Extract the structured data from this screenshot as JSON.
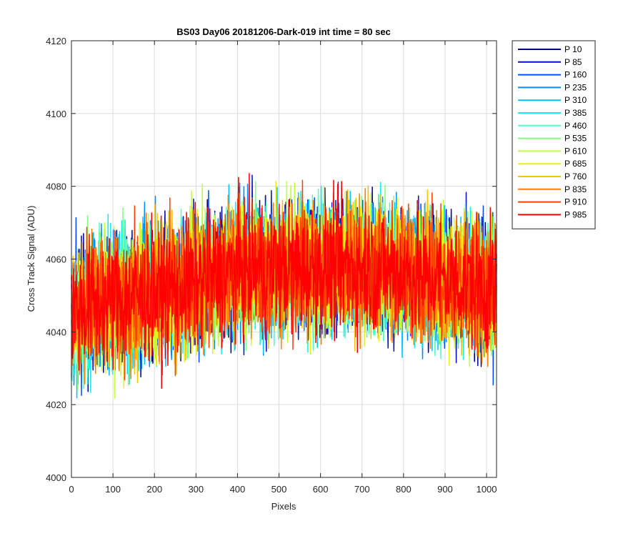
{
  "chart_data": {
    "type": "line",
    "title": "BS03 Day06 20181206-Dark-019 int time = 80 sec",
    "xlabel": "Pixels",
    "ylabel": "Cross Track Signal (ADU)",
    "xlim": [
      0,
      1024
    ],
    "ylim": [
      4000,
      4120
    ],
    "x_ticks": [
      0,
      100,
      200,
      300,
      400,
      500,
      600,
      700,
      800,
      900,
      1000
    ],
    "y_ticks": [
      4000,
      4020,
      4040,
      4060,
      4080,
      4100,
      4120
    ],
    "x_tick_labels": [
      "0",
      "100",
      "200",
      "300",
      "400",
      "500",
      "600",
      "700",
      "800",
      "900",
      "1000"
    ],
    "y_tick_labels": [
      "4000",
      "4020",
      "4040",
      "4060",
      "4080",
      "4100",
      "4120"
    ],
    "grid": true,
    "legend_position": "outside-top-right",
    "x_points": 1024,
    "profile": [
      {
        "x": 0,
        "y": 4046
      },
      {
        "x": 250,
        "y": 4052
      },
      {
        "x": 400,
        "y": 4057
      },
      {
        "x": 700,
        "y": 4058
      },
      {
        "x": 1024,
        "y": 4052
      }
    ],
    "noise_amplitude": 9,
    "series": [
      {
        "name": "P 10",
        "color": "#00008f"
      },
      {
        "name": "P 85",
        "color": "#0010c8"
      },
      {
        "name": "P 160",
        "color": "#0050ff"
      },
      {
        "name": "P 235",
        "color": "#008cff"
      },
      {
        "name": "P 310",
        "color": "#00c0ff"
      },
      {
        "name": "P 385",
        "color": "#10f0f0"
      },
      {
        "name": "P 460",
        "color": "#50ffc0"
      },
      {
        "name": "P 535",
        "color": "#80ff80"
      },
      {
        "name": "P 610",
        "color": "#c0ff40"
      },
      {
        "name": "P 685",
        "color": "#f0f010"
      },
      {
        "name": "P 760",
        "color": "#ffc000"
      },
      {
        "name": "P 835",
        "color": "#ff8000"
      },
      {
        "name": "P 910",
        "color": "#ff4000"
      },
      {
        "name": "P 985",
        "color": "#ff0000"
      }
    ]
  }
}
